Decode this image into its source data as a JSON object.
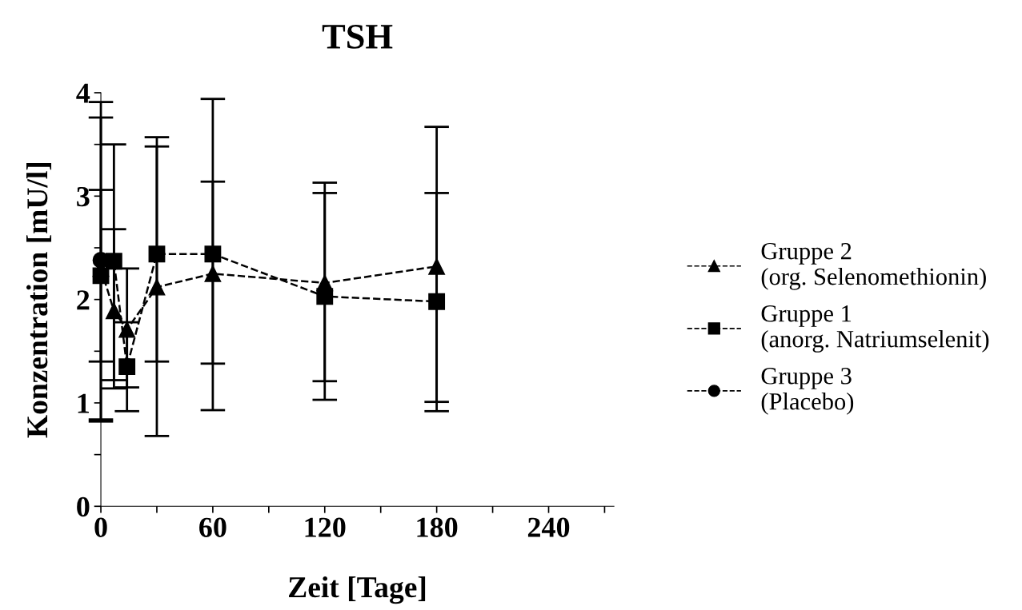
{
  "chart_data": {
    "type": "line",
    "title": "TSH",
    "xlabel": "Zeit [Tage]",
    "ylabel": "Konzentration [mU/l]",
    "xlim": [
      0,
      275
    ],
    "xticks": [
      0,
      {
        "value": 30,
        "label": null
      },
      60,
      {
        "value": 90,
        "label": null
      },
      120,
      {
        "value": 150,
        "label": null
      },
      180,
      {
        "value": 210,
        "label": null
      },
      240,
      {
        "value": 270,
        "label": null
      }
    ],
    "ylim": [
      0,
      4
    ],
    "yticks": [
      0,
      {
        "value": 0.5,
        "label": null
      },
      1,
      {
        "value": 1.5,
        "label": null
      },
      2,
      {
        "value": 2.5,
        "label": null
      },
      3,
      {
        "value": 3.5,
        "label": null
      },
      4
    ],
    "grid": false,
    "legend": "right",
    "line_style": "dashed",
    "series": [
      {
        "name": "Gruppe 2\n(org. Selenomethionin)",
        "color": "#000000",
        "marker": "triangle",
        "x": [
          0,
          7,
          14,
          30,
          60,
          120,
          180
        ],
        "values": [
          2.3,
          1.89,
          1.71,
          2.12,
          2.25,
          2.16,
          2.32
        ],
        "errors": [
          [
            0.84,
            3.76
          ],
          [
            1.14,
            2.68
          ],
          [
            1.15,
            2.3
          ],
          [
            0.68,
            3.57
          ],
          [
            1.38,
            3.14
          ],
          [
            1.21,
            3.13
          ],
          [
            1.01,
            3.67
          ]
        ]
      },
      {
        "name": "Gruppe 1\n(anorg. Natriumselenit)",
        "color": "#000000",
        "marker": "square",
        "x": [
          0,
          7,
          14,
          30,
          60,
          120,
          180
        ],
        "values": [
          2.23,
          2.37,
          1.35,
          2.44,
          2.44,
          2.03,
          1.98
        ],
        "errors": [
          [
            1.4,
            3.06
          ],
          [
            1.22,
            3.5
          ],
          [
            0.92,
            1.78
          ],
          [
            1.4,
            3.48
          ],
          [
            0.93,
            3.94
          ],
          [
            1.03,
            3.03
          ],
          [
            0.92,
            3.03
          ]
        ]
      },
      {
        "name": "Gruppe 3\n(Placebo)",
        "color": "#000000",
        "marker": "circle",
        "x": [
          0
        ],
        "values": [
          2.38
        ],
        "errors": [
          [
            0.82,
            3.91
          ]
        ]
      }
    ]
  }
}
